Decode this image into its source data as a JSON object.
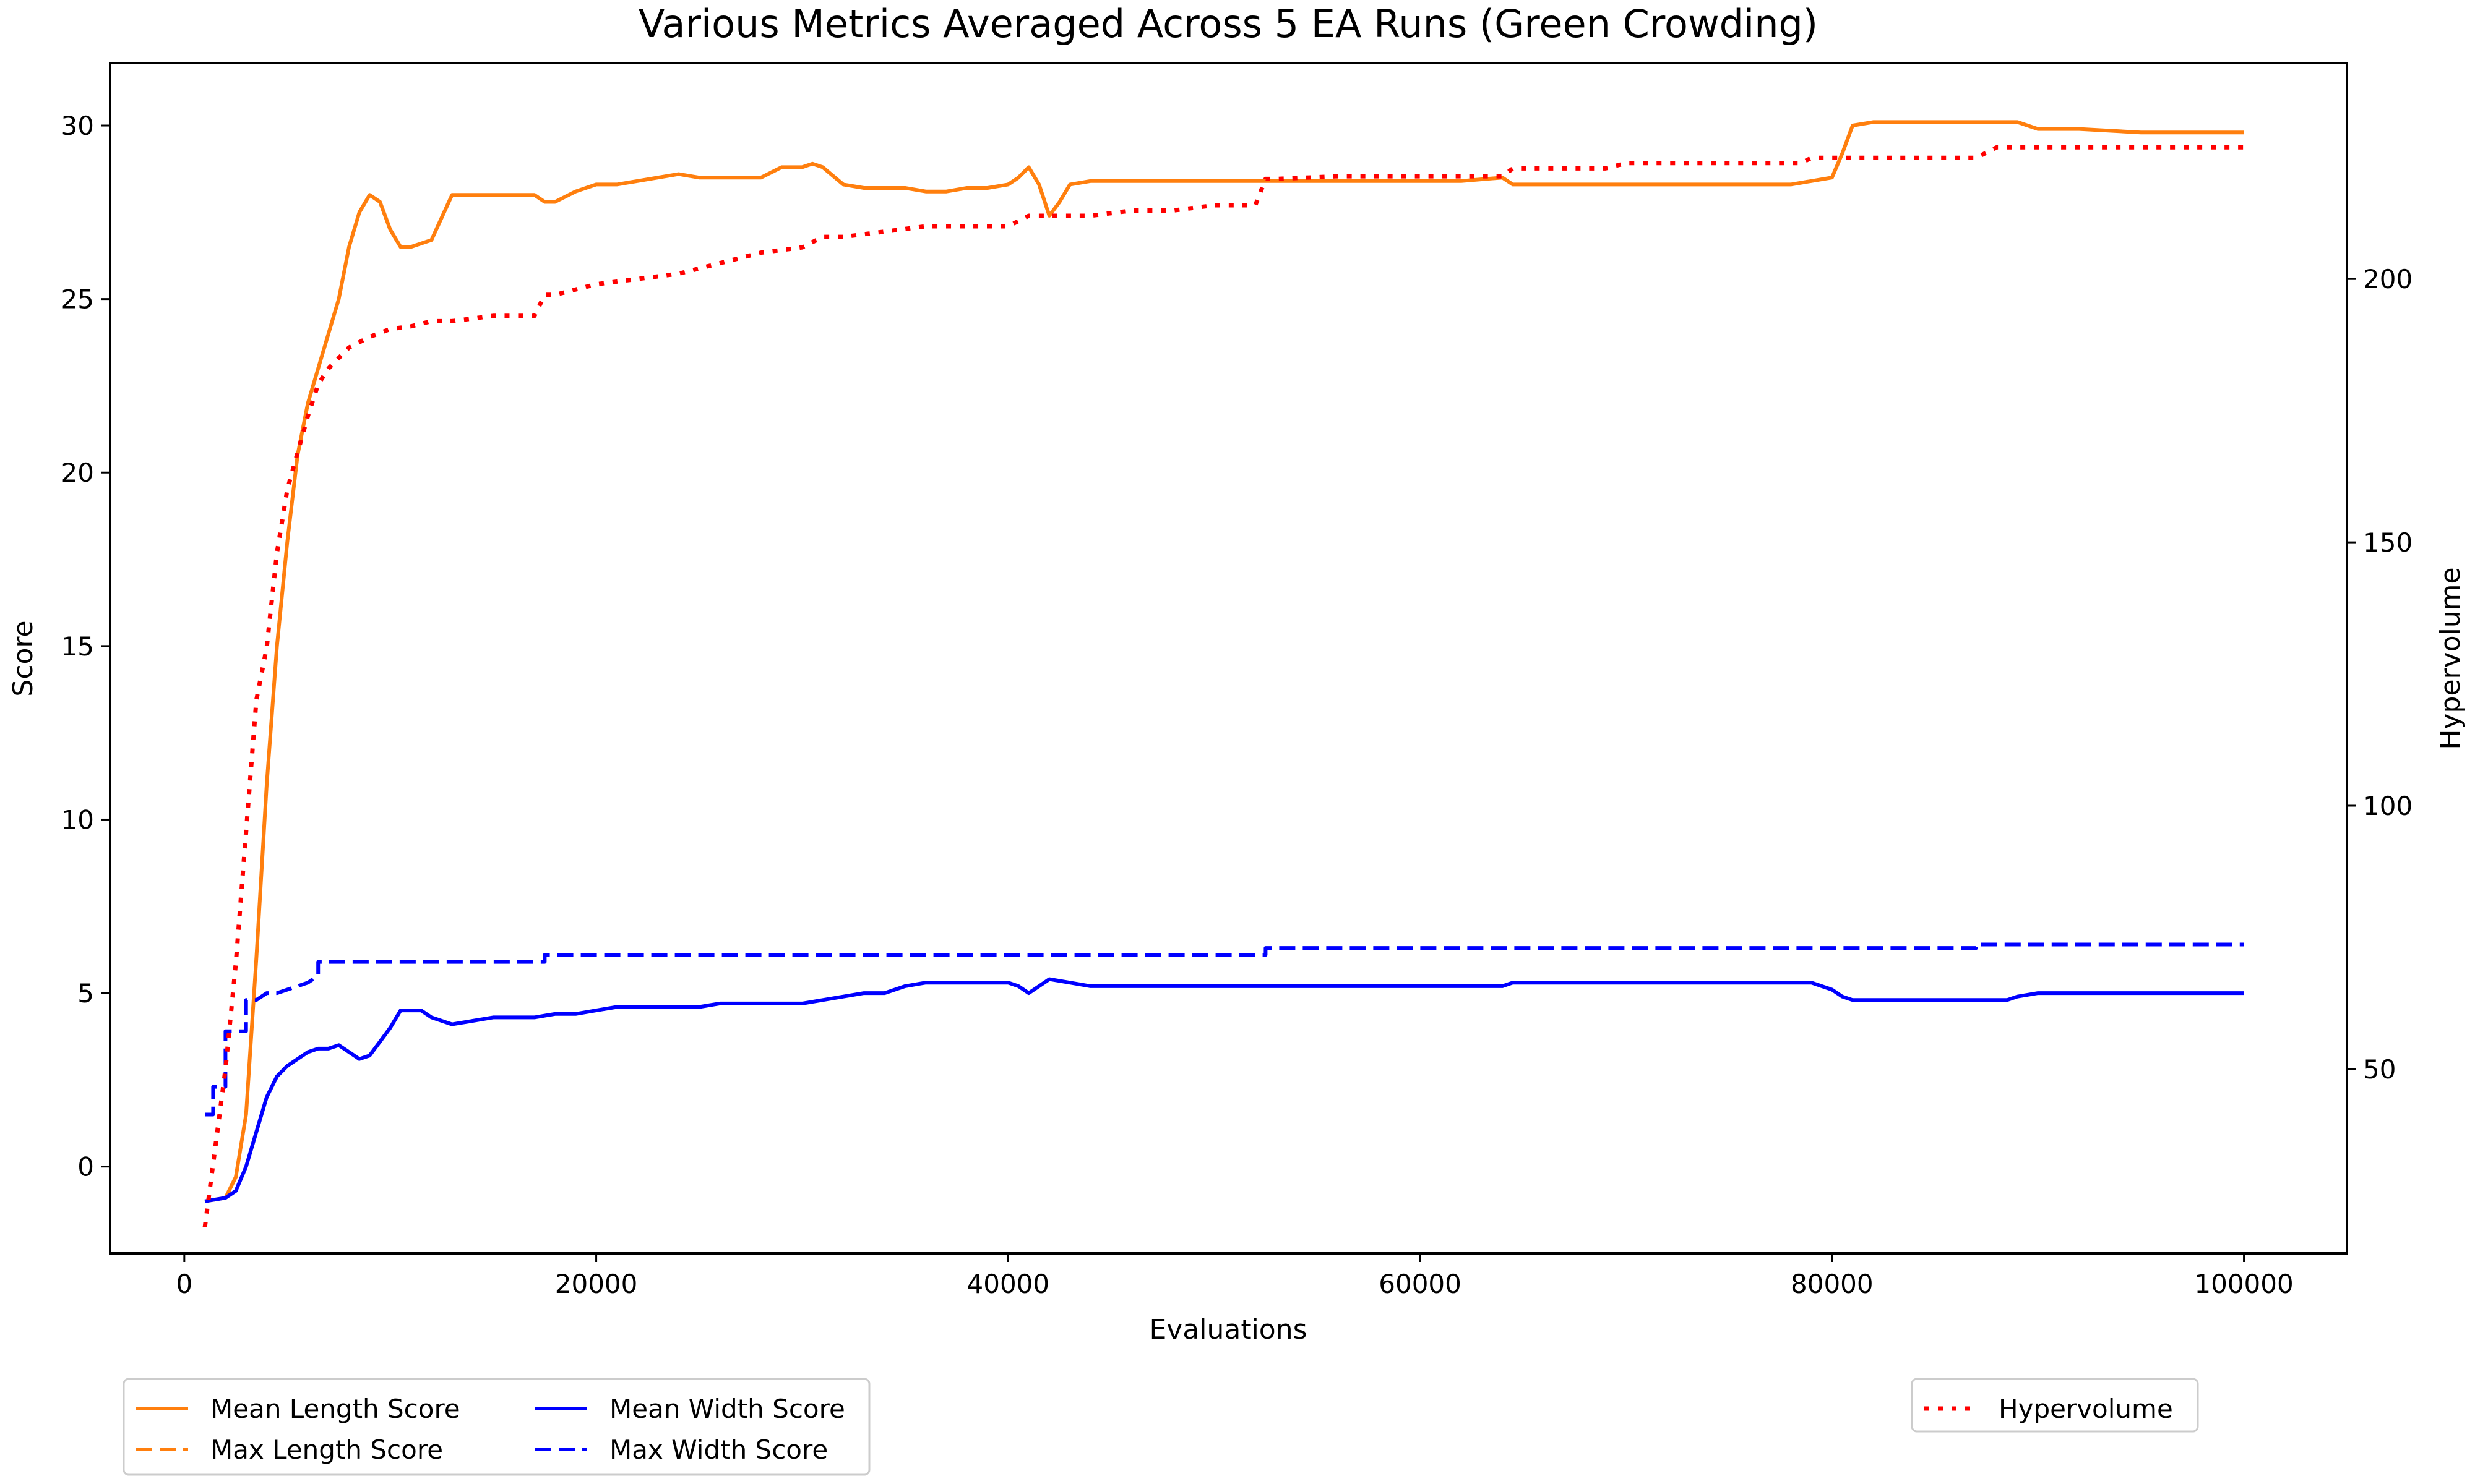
{
  "chart_data": {
    "type": "line",
    "title": "Various Metrics Averaged Across 5 EA Runs (Green Crowding)",
    "xlabel": "Evaluations",
    "ylabel": "Score",
    "y2label": "Hypervolume",
    "xlim": [
      -3600,
      105000
    ],
    "ylim": [
      -2.5,
      31.8
    ],
    "y2lim": [
      15,
      241
    ],
    "xticks": [
      0,
      20000,
      40000,
      60000,
      80000,
      100000
    ],
    "yticks": [
      0,
      5,
      10,
      15,
      20,
      25,
      30
    ],
    "y2ticks": [
      50,
      100,
      150,
      200
    ],
    "grid": false,
    "legend_left_placement": "bottom-left, outside axes",
    "legend_right_placement": "bottom-right, outside axes",
    "series": [
      {
        "name": "Mean Length Score",
        "axis": "left",
        "color": "#ff7f0e",
        "dash": "solid",
        "x": [
          1000,
          2000,
          2500,
          3000,
          3500,
          4000,
          4500,
          5000,
          5500,
          6000,
          6500,
          7000,
          7500,
          8000,
          8500,
          9000,
          9500,
          10000,
          10500,
          11000,
          12000,
          13000,
          14000,
          16000,
          17000,
          17500,
          18000,
          19000,
          20000,
          21000,
          22000,
          23000,
          24000,
          25000,
          26000,
          27000,
          28000,
          29000,
          30000,
          30500,
          31000,
          32000,
          33000,
          34000,
          35000,
          36000,
          37000,
          38000,
          39000,
          40000,
          40500,
          41000,
          41500,
          42000,
          42500,
          43000,
          44000,
          46000,
          48000,
          50000,
          52000,
          54000,
          56000,
          58000,
          60000,
          62000,
          64000,
          64500,
          66000,
          68000,
          70000,
          72000,
          74000,
          76000,
          78000,
          79000,
          80000,
          80500,
          81000,
          82000,
          84000,
          86000,
          88000,
          89000,
          90000,
          92000,
          95000,
          100000
        ],
        "y": [
          -1,
          -0.9,
          -0.3,
          1.5,
          6,
          11,
          15,
          18,
          20.5,
          22,
          23,
          24,
          25,
          26.5,
          27.5,
          28,
          27.8,
          27,
          26.5,
          26.5,
          26.7,
          28,
          28,
          28,
          28,
          27.8,
          27.8,
          28.1,
          28.3,
          28.3,
          28.4,
          28.5,
          28.6,
          28.5,
          28.5,
          28.5,
          28.5,
          28.8,
          28.8,
          28.9,
          28.8,
          28.3,
          28.2,
          28.2,
          28.2,
          28.1,
          28.1,
          28.2,
          28.2,
          28.3,
          28.5,
          28.8,
          28.3,
          27.4,
          27.8,
          28.3,
          28.4,
          28.4,
          28.4,
          28.4,
          28.4,
          28.4,
          28.4,
          28.4,
          28.4,
          28.4,
          28.5,
          28.3,
          28.3,
          28.3,
          28.3,
          28.3,
          28.3,
          28.3,
          28.3,
          28.4,
          28.5,
          29.2,
          30,
          30.1,
          30.1,
          30.1,
          30.1,
          30.1,
          29.9,
          29.9,
          29.8,
          29.8
        ]
      },
      {
        "name": "Max Length Score",
        "axis": "left",
        "color": "#ff7f0e",
        "dash": "dashed",
        "x": [],
        "y": []
      },
      {
        "name": "Mean Width Score",
        "axis": "left",
        "color": "#0000ff",
        "dash": "solid",
        "x": [
          1000,
          2000,
          2500,
          3000,
          3500,
          4000,
          4500,
          5000,
          5500,
          6000,
          6500,
          7000,
          7500,
          8000,
          8500,
          9000,
          9500,
          10000,
          10500,
          11000,
          11500,
          12000,
          13000,
          14000,
          15000,
          16000,
          17000,
          18000,
          19000,
          20000,
          21000,
          22000,
          24000,
          25000,
          26000,
          27000,
          28000,
          29000,
          30000,
          31000,
          32000,
          33000,
          34000,
          35000,
          36000,
          38000,
          40000,
          40500,
          41000,
          41500,
          42000,
          43000,
          44000,
          46000,
          48000,
          50000,
          52000,
          54000,
          56000,
          58000,
          60000,
          62000,
          64000,
          64500,
          66000,
          68000,
          70000,
          72000,
          74000,
          76000,
          78000,
          79000,
          79500,
          80000,
          80500,
          81000,
          82000,
          84000,
          86000,
          88000,
          88500,
          89000,
          90000,
          92000,
          95000,
          100000
        ],
        "y": [
          -1,
          -0.9,
          -0.7,
          0,
          1,
          2,
          2.6,
          2.9,
          3.1,
          3.3,
          3.4,
          3.4,
          3.5,
          3.3,
          3.1,
          3.2,
          3.6,
          4,
          4.5,
          4.5,
          4.5,
          4.3,
          4.1,
          4.2,
          4.3,
          4.3,
          4.3,
          4.4,
          4.4,
          4.5,
          4.6,
          4.6,
          4.6,
          4.6,
          4.7,
          4.7,
          4.7,
          4.7,
          4.7,
          4.8,
          4.9,
          5,
          5,
          5.2,
          5.3,
          5.3,
          5.3,
          5.2,
          5,
          5.2,
          5.4,
          5.3,
          5.2,
          5.2,
          5.2,
          5.2,
          5.2,
          5.2,
          5.2,
          5.2,
          5.2,
          5.2,
          5.2,
          5.3,
          5.3,
          5.3,
          5.3,
          5.3,
          5.3,
          5.3,
          5.3,
          5.3,
          5.2,
          5.1,
          4.9,
          4.8,
          4.8,
          4.8,
          4.8,
          4.8,
          4.8,
          4.9,
          5,
          5,
          5,
          5
        ]
      },
      {
        "name": "Max Width Score",
        "axis": "left",
        "color": "#0000ff",
        "dash": "dashed",
        "x": [
          1000,
          1400,
          1400,
          2000,
          2000,
          3000,
          3000,
          3500,
          4000,
          4500,
          5000,
          5500,
          6000,
          6500,
          6500,
          17500,
          17500,
          52500,
          52500,
          87000,
          87000,
          100000
        ],
        "y": [
          1.5,
          1.5,
          2.3,
          2.3,
          3.9,
          3.9,
          4.8,
          4.8,
          5,
          5,
          5.1,
          5.2,
          5.3,
          5.5,
          5.9,
          5.9,
          6.1,
          6.1,
          6.3,
          6.3,
          6.4,
          6.4
        ]
      },
      {
        "name": "Hypervolume",
        "axis": "right",
        "color": "#ff0000",
        "dash": "dotted",
        "x": [
          1000,
          1500,
          2000,
          2500,
          3000,
          3500,
          4000,
          4500,
          5000,
          5500,
          6000,
          6500,
          7000,
          8000,
          9000,
          10000,
          11000,
          12000,
          13000,
          14000,
          15000,
          16000,
          17000,
          17500,
          18000,
          20000,
          22000,
          24000,
          26000,
          28000,
          30000,
          31000,
          32000,
          34000,
          36000,
          38000,
          40000,
          41000,
          42000,
          44000,
          46000,
          48000,
          50000,
          52000,
          52500,
          53000,
          56000,
          60000,
          64000,
          64500,
          66000,
          69000,
          70000,
          75000,
          78500,
          79000,
          85000,
          87000,
          87500,
          88000,
          100000
        ],
        "y": [
          20,
          35,
          50,
          70,
          95,
          120,
          130,
          148,
          160,
          167,
          174,
          180,
          183,
          187,
          189,
          190.5,
          191,
          192,
          192,
          192.5,
          193,
          193,
          193,
          197,
          197,
          199,
          200,
          201,
          203,
          205,
          206,
          208,
          208,
          209,
          210,
          210,
          210,
          212,
          212,
          212,
          213,
          213,
          214,
          214,
          219,
          219,
          219.5,
          219.5,
          219.5,
          221,
          221,
          221,
          222,
          222,
          222,
          223,
          223,
          223,
          224,
          225,
          225
        ]
      }
    ]
  }
}
